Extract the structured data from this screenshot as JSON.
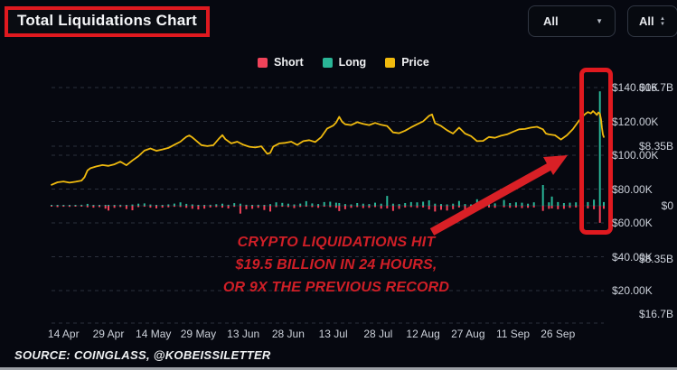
{
  "header": {
    "title": "Total Liquidations Chart",
    "filters": [
      {
        "label": "All"
      },
      {
        "label": "All"
      }
    ]
  },
  "legend": [
    {
      "label": "Short",
      "color": "#f0435a"
    },
    {
      "label": "Long",
      "color": "#2ab597"
    },
    {
      "label": "Price",
      "color": "#f0ba0e"
    }
  ],
  "annotation": {
    "line1": "CRYPTO LIQUIDATIONS HIT",
    "line2": "$19.5 BILLION IN 24 HOURS,",
    "line3": "OR 9X THE PREVIOUS RECORD"
  },
  "source": "SOURCE: COINGLASS, @KOBEISSILETTER",
  "theme": {
    "background": "#060810",
    "red_box": "#e0191f",
    "arrow_red": "#d92026",
    "annotation_red": "#d01f27",
    "short": "#f0435a",
    "long": "#2ab597",
    "price": "#f0ba0e",
    "grid": "#4a5160",
    "axis_text": "#ccd1da"
  },
  "chart_data": {
    "type": "bar",
    "title": "Total Liquidations Chart",
    "note": "Mirrored bar chart of daily long/short liquidations ($B, left axis) with BTC price line ($K, right axis); huge long-liquidation spike highlighted at far right.",
    "left_axis": {
      "ticks": [
        "$16.7B",
        "$8.35B",
        "$0",
        "$8.35B",
        "$16.7B"
      ],
      "range_B": [
        -16.7,
        16.7
      ]
    },
    "right_axis": {
      "ticks": [
        "$140.00K",
        "$120.00K",
        "$100.00K",
        "$80.00K",
        "$60.00K",
        "$40.00K",
        "$20.00K"
      ],
      "tick_values": [
        140,
        120,
        100,
        80,
        60,
        40,
        20
      ]
    },
    "x_axis": {
      "ticks": [
        "14 Apr",
        "29 Apr",
        "14 May",
        "29 May",
        "13 Jun",
        "28 Jun",
        "13 Jul",
        "28 Jul",
        "12 Aug",
        "27 Aug",
        "11 Sep",
        "26 Sep"
      ],
      "tick_interval_days": 15
    },
    "series": [
      {
        "name": "Short",
        "type": "bar",
        "color": "#f0435a",
        "axis": "left",
        "unit": "$B"
      },
      {
        "name": "Long",
        "type": "bar",
        "color": "#2ab597",
        "axis": "left",
        "unit": "$B"
      },
      {
        "name": "Price",
        "type": "line",
        "color": "#f0ba0e",
        "axis": "right",
        "unit": "$K"
      }
    ],
    "spike": {
      "long_B": 16.8,
      "short_B": 2.5,
      "total_B": 19.5
    },
    "bars": [
      [
        0,
        0.07,
        0.12
      ],
      [
        2,
        0.05,
        0.2
      ],
      [
        4,
        0.09,
        0.14
      ],
      [
        6,
        0.05,
        0.16
      ],
      [
        8,
        0.08,
        0.1
      ],
      [
        10,
        0.14,
        0.08
      ],
      [
        12,
        0.28,
        0.22
      ],
      [
        14,
        0.1,
        0.28
      ],
      [
        16,
        0.07,
        0.2
      ],
      [
        18,
        0.1,
        0.42
      ],
      [
        19,
        0.05,
        0.7
      ],
      [
        21,
        0.12,
        0.3
      ],
      [
        23,
        0.14,
        0.18
      ],
      [
        25,
        0.1,
        0.48
      ],
      [
        27,
        0.18,
        0.66
      ],
      [
        29,
        0.3,
        0.2
      ],
      [
        31,
        0.34,
        0.14
      ],
      [
        33,
        0.18,
        0.28
      ],
      [
        35,
        0.12,
        0.38
      ],
      [
        37,
        0.1,
        0.28
      ],
      [
        39,
        0.2,
        0.22
      ],
      [
        41,
        0.32,
        0.16
      ],
      [
        43,
        0.5,
        0.18
      ],
      [
        45,
        0.28,
        0.3
      ],
      [
        47,
        0.2,
        0.44
      ],
      [
        49,
        0.12,
        0.55
      ],
      [
        51,
        0.1,
        0.42
      ],
      [
        53,
        0.15,
        0.25
      ],
      [
        55,
        0.22,
        0.2
      ],
      [
        57,
        0.3,
        0.28
      ],
      [
        59,
        0.14,
        0.4
      ],
      [
        61,
        0.38,
        0.16
      ],
      [
        63,
        0.3,
        1.15
      ],
      [
        65,
        0.15,
        0.5
      ],
      [
        67,
        0.1,
        0.45
      ],
      [
        69,
        0.14,
        0.3
      ],
      [
        71,
        0.08,
        0.62
      ],
      [
        73,
        0.24,
        0.85
      ],
      [
        75,
        0.5,
        0.2
      ],
      [
        77,
        0.42,
        0.15
      ],
      [
        79,
        0.3,
        0.2
      ],
      [
        81,
        0.2,
        0.35
      ],
      [
        83,
        0.32,
        0.18
      ],
      [
        85,
        0.68,
        0.14
      ],
      [
        87,
        0.35,
        0.2
      ],
      [
        89,
        0.25,
        0.3
      ],
      [
        91,
        0.55,
        0.15
      ],
      [
        93,
        0.6,
        0.2
      ],
      [
        95,
        0.45,
        0.3
      ],
      [
        96,
        0.4,
        0.78
      ],
      [
        98,
        0.25,
        0.5
      ],
      [
        100,
        0.2,
        0.3
      ],
      [
        102,
        0.4,
        0.2
      ],
      [
        104,
        0.3,
        0.35
      ],
      [
        106,
        0.25,
        0.3
      ],
      [
        108,
        0.45,
        0.2
      ],
      [
        110,
        0.3,
        0.42
      ],
      [
        112,
        1.45,
        0.38
      ],
      [
        114,
        0.3,
        0.75
      ],
      [
        116,
        0.25,
        0.45
      ],
      [
        118,
        0.4,
        0.25
      ],
      [
        120,
        0.55,
        0.2
      ],
      [
        122,
        0.5,
        0.3
      ],
      [
        124,
        0.6,
        0.25
      ],
      [
        126,
        0.8,
        0.55
      ],
      [
        128,
        0.3,
        0.85
      ],
      [
        130,
        0.25,
        0.6
      ],
      [
        132,
        0.2,
        0.7
      ],
      [
        134,
        0.3,
        0.5
      ],
      [
        136,
        0.7,
        0.25
      ],
      [
        138,
        0.25,
        0.8
      ],
      [
        140,
        0.2,
        0.6
      ],
      [
        142,
        0.95,
        0.3
      ],
      [
        144,
        0.4,
        0.35
      ],
      [
        146,
        0.75,
        0.25
      ],
      [
        148,
        0.35,
        0.3
      ],
      [
        151,
        0.85,
        0.22
      ],
      [
        153,
        0.4,
        0.3
      ],
      [
        155,
        0.5,
        0.25
      ],
      [
        157,
        0.45,
        0.35
      ],
      [
        159,
        0.3,
        0.3
      ],
      [
        161,
        0.5,
        0.25
      ],
      [
        164,
        3.05,
        0.75
      ],
      [
        166,
        0.5,
        0.45
      ],
      [
        167,
        1.35,
        0.4
      ],
      [
        169,
        0.55,
        0.5
      ],
      [
        171,
        0.4,
        0.45
      ],
      [
        173,
        0.45,
        0.3
      ],
      [
        175,
        0.5,
        0.25
      ],
      [
        177,
        0.65,
        0.3
      ],
      [
        179,
        0.55,
        0.4
      ],
      [
        181,
        0.9,
        0.5
      ],
      [
        183,
        16.8,
        2.5
      ],
      [
        184.3,
        0.55,
        0.45
      ]
    ],
    "price": [
      [
        0,
        82.5
      ],
      [
        2,
        84
      ],
      [
        4,
        84.5
      ],
      [
        6,
        83.8
      ],
      [
        8,
        84.3
      ],
      [
        10,
        85
      ],
      [
        11,
        87
      ],
      [
        12,
        91
      ],
      [
        13,
        92.3
      ],
      [
        15,
        93.4
      ],
      [
        17,
        94.2
      ],
      [
        19,
        93.7
      ],
      [
        21,
        94.6
      ],
      [
        23,
        96.2
      ],
      [
        25,
        94.1
      ],
      [
        27,
        96.9
      ],
      [
        29,
        99.4
      ],
      [
        31,
        102.7
      ],
      [
        33,
        104
      ],
      [
        35,
        102.6
      ],
      [
        37,
        103.4
      ],
      [
        39,
        104.3
      ],
      [
        41,
        106.2
      ],
      [
        43,
        108
      ],
      [
        44,
        109.5
      ],
      [
        45,
        110.9
      ],
      [
        46,
        111.7
      ],
      [
        47,
        110.5
      ],
      [
        48,
        109
      ],
      [
        50,
        106
      ],
      [
        52,
        105.4
      ],
      [
        54,
        105.9
      ],
      [
        56,
        110.1
      ],
      [
        57,
        111.9
      ],
      [
        58,
        109.5
      ],
      [
        60,
        107
      ],
      [
        62,
        108
      ],
      [
        64,
        106.2
      ],
      [
        66,
        105
      ],
      [
        68,
        104.6
      ],
      [
        70,
        105.3
      ],
      [
        72,
        100.8
      ],
      [
        73,
        101.4
      ],
      [
        74,
        105.1
      ],
      [
        76,
        107
      ],
      [
        78,
        107.3
      ],
      [
        80,
        108
      ],
      [
        82,
        106.1
      ],
      [
        84,
        108.3
      ],
      [
        86,
        108.9
      ],
      [
        88,
        107.8
      ],
      [
        90,
        110.7
      ],
      [
        92,
        115.8
      ],
      [
        94,
        117.5
      ],
      [
        95,
        119.3
      ],
      [
        96,
        122.7
      ],
      [
        97,
        119.7
      ],
      [
        98,
        118.3
      ],
      [
        100,
        117.8
      ],
      [
        102,
        119.5
      ],
      [
        104,
        118.5
      ],
      [
        106,
        117.8
      ],
      [
        108,
        119.1
      ],
      [
        110,
        118
      ],
      [
        112,
        117.3
      ],
      [
        114,
        113.5
      ],
      [
        116,
        113
      ],
      [
        118,
        114.5
      ],
      [
        120,
        116.5
      ],
      [
        122,
        118.3
      ],
      [
        124,
        120
      ],
      [
        126,
        123.3
      ],
      [
        127,
        124.1
      ],
      [
        128,
        119
      ],
      [
        130,
        117.3
      ],
      [
        132,
        114.8
      ],
      [
        134,
        112.8
      ],
      [
        136,
        116.3
      ],
      [
        138,
        112.8
      ],
      [
        140,
        111.3
      ],
      [
        142,
        108.3
      ],
      [
        144,
        108.5
      ],
      [
        146,
        110.8
      ],
      [
        148,
        110.3
      ],
      [
        150,
        111.5
      ],
      [
        152,
        112.3
      ],
      [
        154,
        113.8
      ],
      [
        156,
        115.3
      ],
      [
        158,
        115.5
      ],
      [
        160,
        116.3
      ],
      [
        162,
        116.8
      ],
      [
        164,
        115.3
      ],
      [
        165,
        112.8
      ],
      [
        166,
        112.3
      ],
      [
        168,
        111.8
      ],
      [
        170,
        109.3
      ],
      [
        172,
        111.8
      ],
      [
        174,
        115.4
      ],
      [
        175,
        117.9
      ],
      [
        176,
        120.4
      ],
      [
        177,
        122.4
      ],
      [
        178,
        124.2
      ],
      [
        179,
        125.5
      ],
      [
        180,
        124.7
      ],
      [
        180.7,
        126.1
      ],
      [
        181.3,
        125.1
      ],
      [
        182,
        123.8
      ],
      [
        182.5,
        125.3
      ],
      [
        183,
        124.5
      ],
      [
        183.4,
        121
      ],
      [
        183.7,
        116
      ],
      [
        184,
        112.3
      ],
      [
        184.4,
        110.8
      ]
    ]
  }
}
